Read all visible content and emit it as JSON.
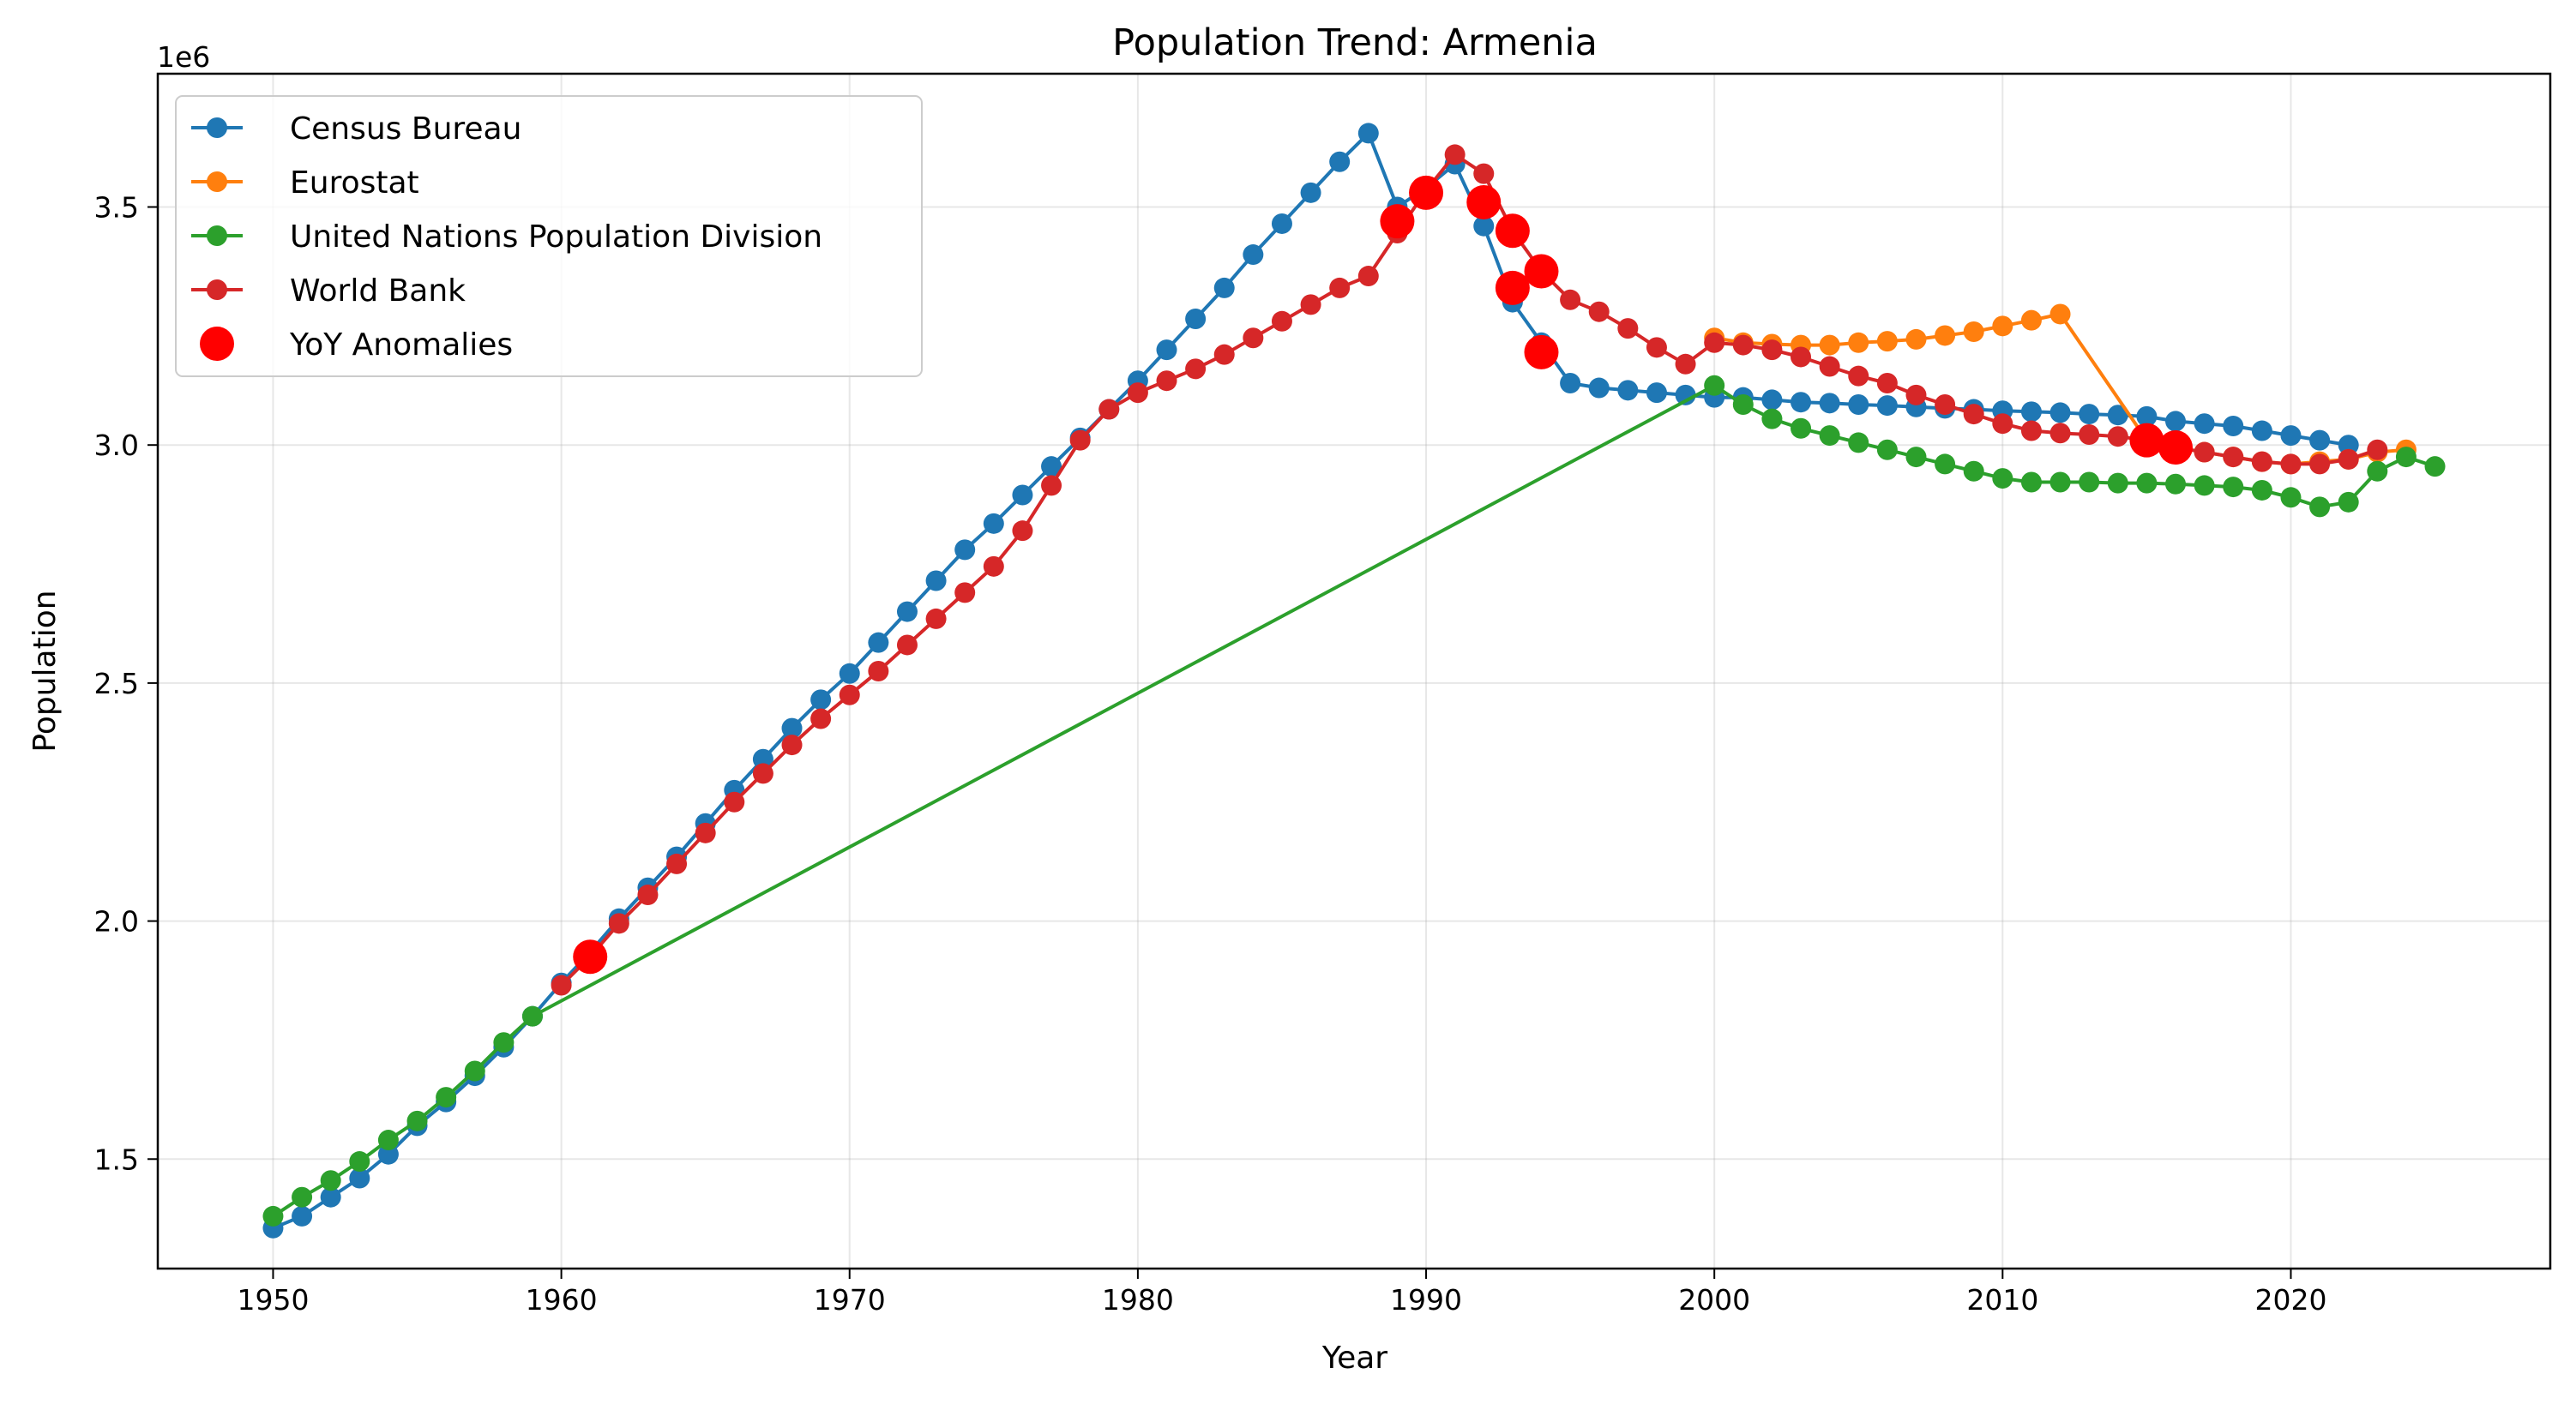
{
  "chart_data": {
    "type": "line",
    "title": "Population Trend: Armenia",
    "xlabel": "Year",
    "ylabel": "Population",
    "y_offset_label": "1e6",
    "xlim": [
      1946,
      2029
    ],
    "ylim": [
      1270000,
      3780000
    ],
    "x_ticks": [
      1950,
      1960,
      1970,
      1980,
      1990,
      2000,
      2010,
      2020
    ],
    "y_ticks": [
      1500000,
      2000000,
      2500000,
      3000000,
      3500000
    ],
    "y_tick_labels": [
      "1.5",
      "2.0",
      "2.5",
      "3.0",
      "3.5"
    ],
    "grid": true,
    "legend_position": "upper-left",
    "series": [
      {
        "name": "Census Bureau",
        "color": "#1f77b4",
        "x": [
          1950,
          1951,
          1952,
          1953,
          1954,
          1955,
          1956,
          1957,
          1958,
          1959,
          1960,
          1961,
          1962,
          1963,
          1964,
          1965,
          1966,
          1967,
          1968,
          1969,
          1970,
          1971,
          1972,
          1973,
          1974,
          1975,
          1976,
          1977,
          1978,
          1979,
          1980,
          1981,
          1982,
          1983,
          1984,
          1985,
          1986,
          1987,
          1988,
          1989,
          1990,
          1991,
          1992,
          1993,
          1994,
          1995,
          1996,
          1997,
          1998,
          1999,
          2000,
          2001,
          2002,
          2003,
          2004,
          2005,
          2006,
          2007,
          2008,
          2009,
          2010,
          2011,
          2012,
          2013,
          2014,
          2015,
          2016,
          2017,
          2018,
          2019,
          2020,
          2021,
          2022
        ],
        "y": [
          1355000,
          1380000,
          1420000,
          1460000,
          1510000,
          1570000,
          1620000,
          1675000,
          1735000,
          1800000,
          1870000,
          1935000,
          2005000,
          2070000,
          2135000,
          2205000,
          2275000,
          2340000,
          2405000,
          2465000,
          2520000,
          2585000,
          2650000,
          2715000,
          2780000,
          2835000,
          2895000,
          2955000,
          3015000,
          3075000,
          3135000,
          3200000,
          3265000,
          3330000,
          3400000,
          3465000,
          3530000,
          3595000,
          3655000,
          3500000,
          3540000,
          3590000,
          3460000,
          3300000,
          3215000,
          3130000,
          3120000,
          3115000,
          3110000,
          3105000,
          3100000,
          3100000,
          3095000,
          3090000,
          3088000,
          3085000,
          3083000,
          3080000,
          3077000,
          3075000,
          3072000,
          3070000,
          3068000,
          3065000,
          3063000,
          3060000,
          3050000,
          3045000,
          3040000,
          3030000,
          3020000,
          3010000,
          3000000
        ]
      },
      {
        "name": "Eurostat",
        "color": "#ff7f0e",
        "x": [
          2000,
          2001,
          2002,
          2003,
          2004,
          2005,
          2006,
          2007,
          2008,
          2009,
          2010,
          2011,
          2012,
          2015,
          2016,
          2017,
          2018,
          2019,
          2020,
          2021,
          2022,
          2023,
          2024
        ],
        "y": [
          3225000,
          3215000,
          3212000,
          3210000,
          3210000,
          3215000,
          3218000,
          3222000,
          3230000,
          3238000,
          3250000,
          3262000,
          3275000,
          3010000,
          2995000,
          2985000,
          2975000,
          2965000,
          2960000,
          2965000,
          2970000,
          2985000,
          2990000
        ]
      },
      {
        "name": "United Nations Population Division",
        "color": "#2ca02c",
        "x": [
          1950,
          1951,
          1952,
          1953,
          1954,
          1955,
          1956,
          1957,
          1958,
          1959,
          2000,
          2001,
          2002,
          2003,
          2004,
          2005,
          2006,
          2007,
          2008,
          2009,
          2010,
          2011,
          2012,
          2013,
          2014,
          2015,
          2016,
          2017,
          2018,
          2019,
          2020,
          2021,
          2022,
          2023,
          2024,
          2025
        ],
        "y": [
          1380000,
          1420000,
          1455000,
          1495000,
          1540000,
          1580000,
          1630000,
          1685000,
          1745000,
          1800000,
          3125000,
          3085000,
          3055000,
          3035000,
          3020000,
          3005000,
          2990000,
          2975000,
          2960000,
          2945000,
          2930000,
          2922000,
          2922000,
          2922000,
          2920000,
          2920000,
          2918000,
          2915000,
          2912000,
          2905000,
          2890000,
          2870000,
          2880000,
          2945000,
          2975000,
          2955000
        ]
      },
      {
        "name": "World Bank",
        "color": "#d62728",
        "x": [
          1960,
          1961,
          1962,
          1963,
          1964,
          1965,
          1966,
          1967,
          1968,
          1969,
          1970,
          1971,
          1972,
          1973,
          1974,
          1975,
          1976,
          1977,
          1978,
          1979,
          1980,
          1981,
          1982,
          1983,
          1984,
          1985,
          1986,
          1987,
          1988,
          1989,
          1990,
          1991,
          1992,
          1993,
          1994,
          1995,
          1996,
          1997,
          1998,
          1999,
          2000,
          2001,
          2002,
          2003,
          2004,
          2005,
          2006,
          2007,
          2008,
          2009,
          2010,
          2011,
          2012,
          2013,
          2014,
          2015,
          2016,
          2017,
          2018,
          2019,
          2020,
          2021,
          2022,
          2023
        ],
        "y": [
          1865000,
          1925000,
          1995000,
          2055000,
          2120000,
          2185000,
          2250000,
          2310000,
          2370000,
          2425000,
          2475000,
          2525000,
          2580000,
          2635000,
          2690000,
          2745000,
          2820000,
          2915000,
          3010000,
          3075000,
          3110000,
          3135000,
          3160000,
          3190000,
          3225000,
          3260000,
          3295000,
          3330000,
          3355000,
          3445000,
          3535000,
          3610000,
          3570000,
          3450000,
          3365000,
          3305000,
          3280000,
          3245000,
          3205000,
          3170000,
          3215000,
          3210000,
          3200000,
          3185000,
          3165000,
          3145000,
          3130000,
          3105000,
          3085000,
          3065000,
          3045000,
          3030000,
          3025000,
          3022000,
          3018000,
          3010000,
          2995000,
          2985000,
          2975000,
          2965000,
          2960000,
          2960000,
          2970000,
          2990000
        ]
      }
    ],
    "anomalies": {
      "name": "YoY Anomalies",
      "color": "#ff0000",
      "x": [
        1961,
        1989,
        1990,
        1992,
        1993,
        1993,
        1994,
        1994,
        2015,
        2016
      ],
      "y": [
        1925000,
        3470000,
        3530000,
        3510000,
        3450000,
        3330000,
        3365000,
        3195000,
        3010000,
        2995000
      ]
    }
  }
}
